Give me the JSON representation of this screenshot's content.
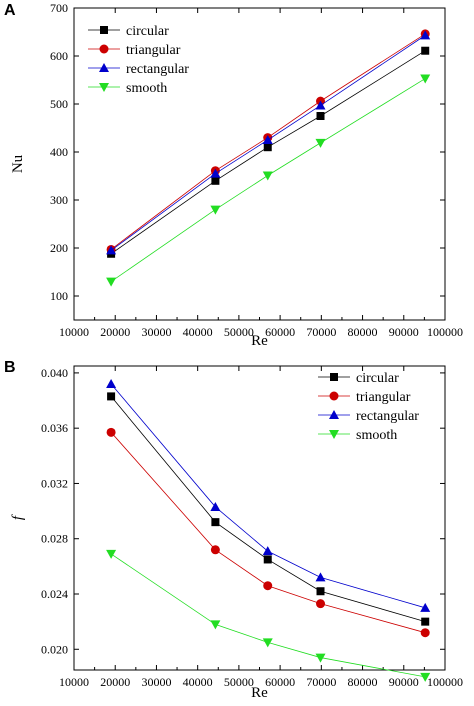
{
  "chart_data": [
    {
      "panel_label": "A",
      "type": "line",
      "xlabel": "Re",
      "ylabel": "Nu",
      "xlim": [
        10000,
        100000
      ],
      "ylim": [
        50,
        700
      ],
      "x_ticks": [
        10000,
        20000,
        30000,
        40000,
        50000,
        60000,
        70000,
        80000,
        90000,
        100000
      ],
      "y_ticks": [
        100,
        200,
        300,
        400,
        500,
        600,
        700
      ],
      "grid": false,
      "legend_position": "top-left",
      "x": [
        19000,
        44300,
        57000,
        69800,
        95200
      ],
      "series": [
        {
          "name": "circular",
          "values": [
            188,
            340,
            410,
            475,
            611
          ],
          "color": "#000000",
          "marker": "square"
        },
        {
          "name": "triangular",
          "values": [
            197,
            361,
            430,
            506,
            646
          ],
          "color": "#cc0000",
          "marker": "circle"
        },
        {
          "name": "rectangular",
          "values": [
            195,
            355,
            425,
            497,
            643
          ],
          "color": "#0000cc",
          "marker": "triangle-up"
        },
        {
          "name": "smooth",
          "values": [
            130,
            280,
            351,
            419,
            553
          ],
          "color": "#22dd22",
          "marker": "triangle-down"
        }
      ]
    },
    {
      "panel_label": "B",
      "type": "line",
      "xlabel": "Re",
      "ylabel": "f",
      "xlim": [
        10000,
        100000
      ],
      "ylim": [
        0.0185,
        0.0405
      ],
      "x_ticks": [
        10000,
        20000,
        30000,
        40000,
        50000,
        60000,
        70000,
        80000,
        90000,
        100000
      ],
      "y_ticks": [
        0.02,
        0.024,
        0.028,
        0.032,
        0.036,
        0.04
      ],
      "y_tick_labels": [
        "0.020",
        "0.024",
        "0.028",
        "0.032",
        "0.036",
        "0.040"
      ],
      "grid": false,
      "legend_position": "top-right",
      "x": [
        19000,
        44300,
        57000,
        69800,
        95200
      ],
      "series": [
        {
          "name": "circular",
          "values": [
            0.0383,
            0.0292,
            0.0265,
            0.0242,
            0.022
          ],
          "color": "#000000",
          "marker": "square"
        },
        {
          "name": "triangular",
          "values": [
            0.0357,
            0.0272,
            0.0246,
            0.0233,
            0.0212
          ],
          "color": "#cc0000",
          "marker": "circle"
        },
        {
          "name": "rectangular",
          "values": [
            0.0392,
            0.0303,
            0.0271,
            0.0252,
            0.023
          ],
          "color": "#0000cc",
          "marker": "triangle-up"
        },
        {
          "name": "smooth",
          "values": [
            0.0269,
            0.0218,
            0.0205,
            0.0194,
            0.018
          ],
          "color": "#22dd22",
          "marker": "triangle-down"
        }
      ]
    }
  ]
}
